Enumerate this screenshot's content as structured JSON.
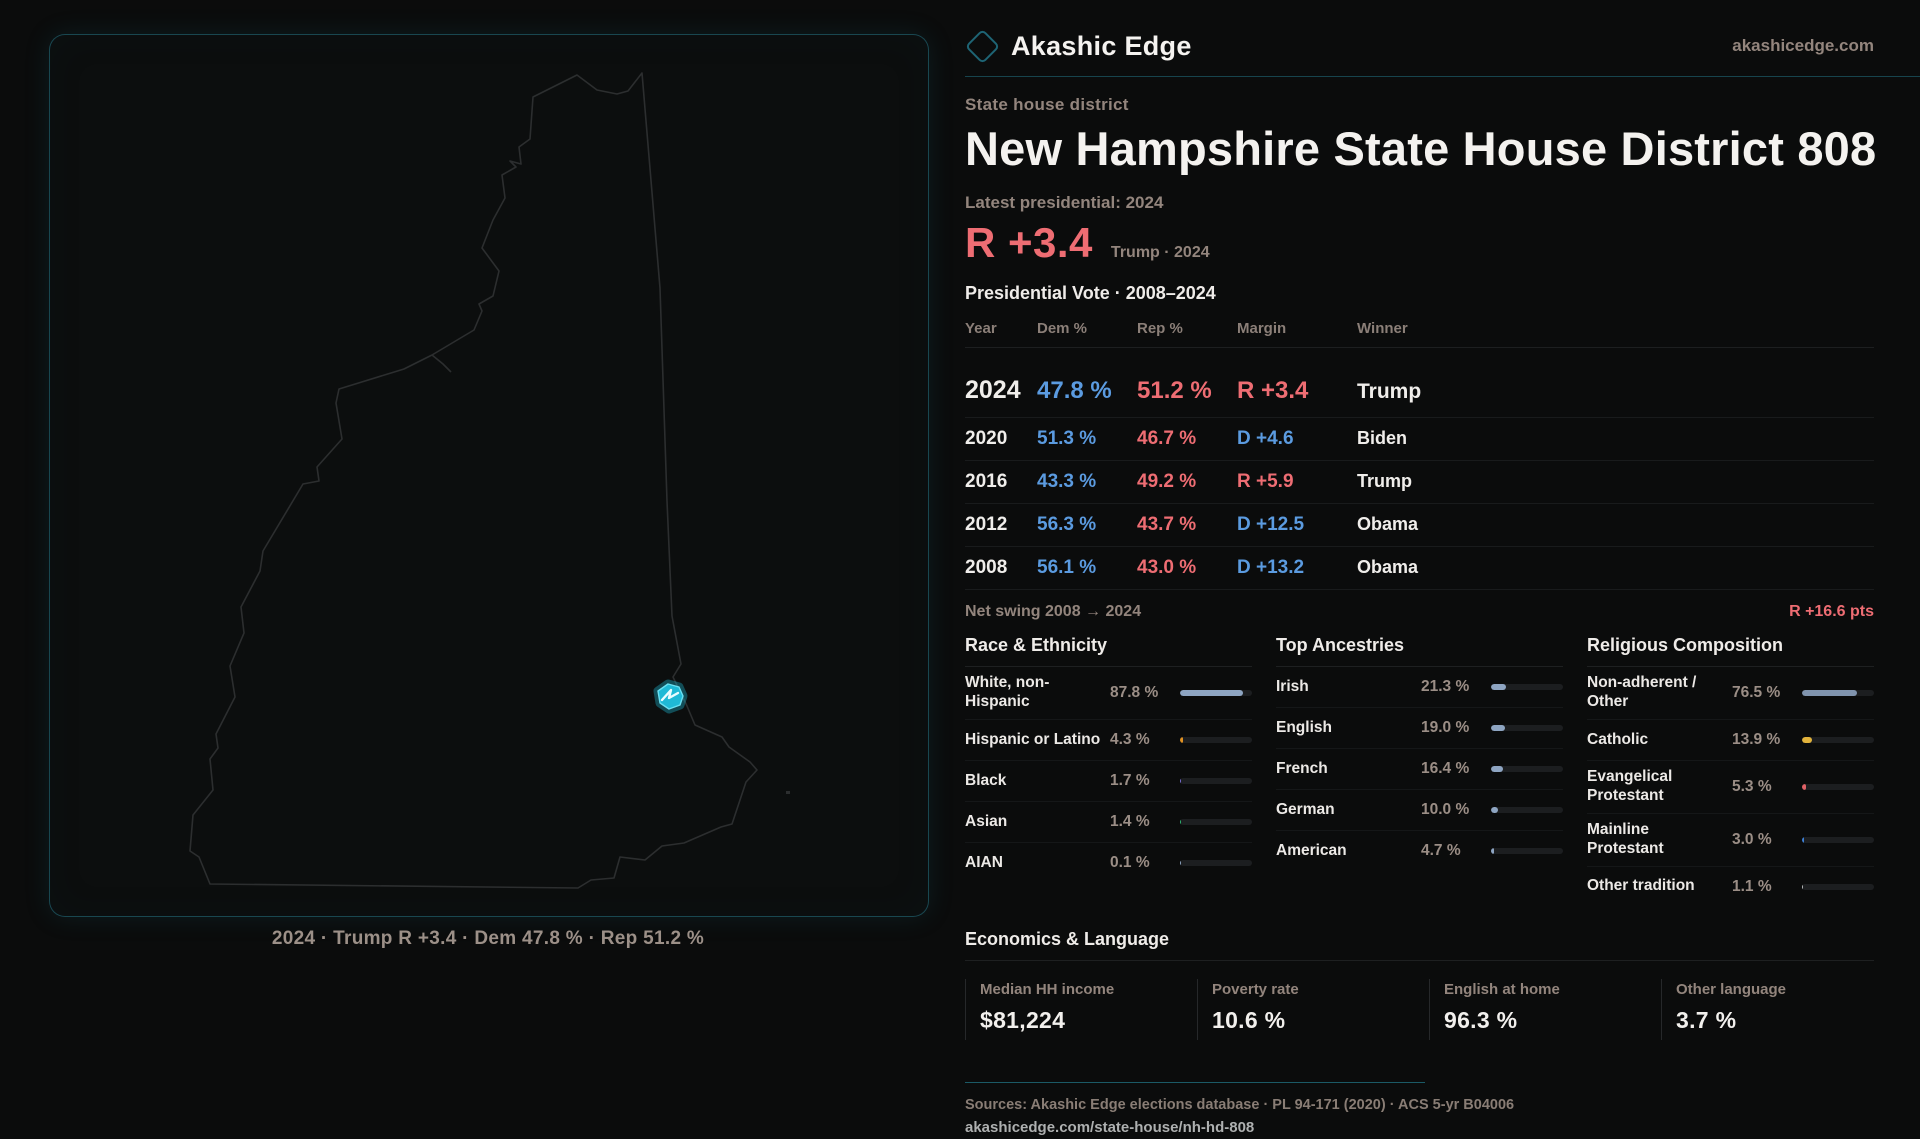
{
  "brand": {
    "name": "Akashic Edge",
    "site": "akashicedge.com",
    "logo_icon": "diamond-outline"
  },
  "header": {
    "kicker": "State house district",
    "title": "New Hampshire State House District 808",
    "latest_label": "Latest presidential: 2024",
    "headline_margin": "R +3.4",
    "headline_detail": "Trump · 2024"
  },
  "map": {
    "state": "New Hampshire",
    "highlight_color": "#27cce6",
    "caption": "2024 · Trump R +3.4 · Dem 47.8 % · Rep 51.2 %"
  },
  "vote_table": {
    "title": "Presidential Vote · 2008–2024",
    "columns": [
      "Year",
      "Dem %",
      "Rep %",
      "Margin",
      "Winner"
    ],
    "rows": [
      {
        "year": "2024",
        "dem": "47.8 %",
        "rep": "51.2 %",
        "margin": "R +3.4",
        "winner": "Trump",
        "latest": true
      },
      {
        "year": "2020",
        "dem": "51.3 %",
        "rep": "46.7 %",
        "margin": "D +4.6",
        "winner": "Biden",
        "latest": false
      },
      {
        "year": "2016",
        "dem": "43.3 %",
        "rep": "49.2 %",
        "margin": "R +5.9",
        "winner": "Trump",
        "latest": false
      },
      {
        "year": "2012",
        "dem": "56.3 %",
        "rep": "43.7 %",
        "margin": "D +12.5",
        "winner": "Obama",
        "latest": false
      },
      {
        "year": "2008",
        "dem": "56.1 %",
        "rep": "43.0 %",
        "margin": "D +13.2",
        "winner": "Obama",
        "latest": false
      }
    ],
    "net_swing_label": "Net swing 2008 → 2024",
    "net_swing_value": "R +16.6 pts"
  },
  "demographics": {
    "groups": [
      {
        "id": "race",
        "title": "Race & Ethnicity",
        "rows": [
          {
            "label": "White, non-Hispanic",
            "value": "87.8 %",
            "pct": 87.8,
            "color": "#8ea5c2"
          },
          {
            "label": "Hispanic or Latino",
            "value": "4.3 %",
            "pct": 4.3,
            "color": "#e09122"
          },
          {
            "label": "Black",
            "value": "1.7 %",
            "pct": 1.7,
            "color": "#7b6fd6"
          },
          {
            "label": "Asian",
            "value": "1.4 %",
            "pct": 1.4,
            "color": "#2fb673"
          },
          {
            "label": "AIAN",
            "value": "0.1 %",
            "pct": 0.1,
            "color": "#8ea5c2"
          }
        ]
      },
      {
        "id": "ancestries",
        "title": "Top Ancestries",
        "rows": [
          {
            "label": "Irish",
            "value": "21.3 %",
            "pct": 21.3,
            "color": "#8ea5c2"
          },
          {
            "label": "English",
            "value": "19.0 %",
            "pct": 19.0,
            "color": "#8ea5c2"
          },
          {
            "label": "French",
            "value": "16.4 %",
            "pct": 16.4,
            "color": "#8ea5c2"
          },
          {
            "label": "German",
            "value": "10.0 %",
            "pct": 10.0,
            "color": "#8ea5c2"
          },
          {
            "label": "American",
            "value": "4.7 %",
            "pct": 4.7,
            "color": "#8ea5c2"
          }
        ]
      },
      {
        "id": "religion",
        "title": "Religious Composition",
        "rows": [
          {
            "label": "Non-adherent / Other",
            "value": "76.5 %",
            "pct": 76.5,
            "color": "#8094ae"
          },
          {
            "label": "Catholic",
            "value": "13.9 %",
            "pct": 13.9,
            "color": "#e2b33c"
          },
          {
            "label": "Evangelical Protestant",
            "value": "5.3 %",
            "pct": 5.3,
            "color": "#df6166"
          },
          {
            "label": "Mainline Protestant",
            "value": "3.0 %",
            "pct": 3.0,
            "color": "#3d7fd4"
          },
          {
            "label": "Other tradition",
            "value": "1.1 %",
            "pct": 1.1,
            "color": "#b9bcbe"
          }
        ]
      }
    ]
  },
  "economics": {
    "title": "Economics & Language",
    "stats": [
      {
        "label": "Median HH income",
        "value": "$81,224"
      },
      {
        "label": "Poverty rate",
        "value": "10.6 %"
      },
      {
        "label": "English at home",
        "value": "96.3 %"
      },
      {
        "label": "Other language",
        "value": "3.7 %"
      }
    ]
  },
  "footer": {
    "sources": "Sources: Akashic Edge elections database · PL 94-171 (2020) · ACS 5-yr B04006",
    "permalink": "akashicedge.com/state-house/nh-hd-808"
  },
  "colors": {
    "dem": "#5b9be0",
    "rep": "#ee6d73",
    "accent_teal": "#1e6474",
    "highlight_cyan": "#27cce6"
  }
}
